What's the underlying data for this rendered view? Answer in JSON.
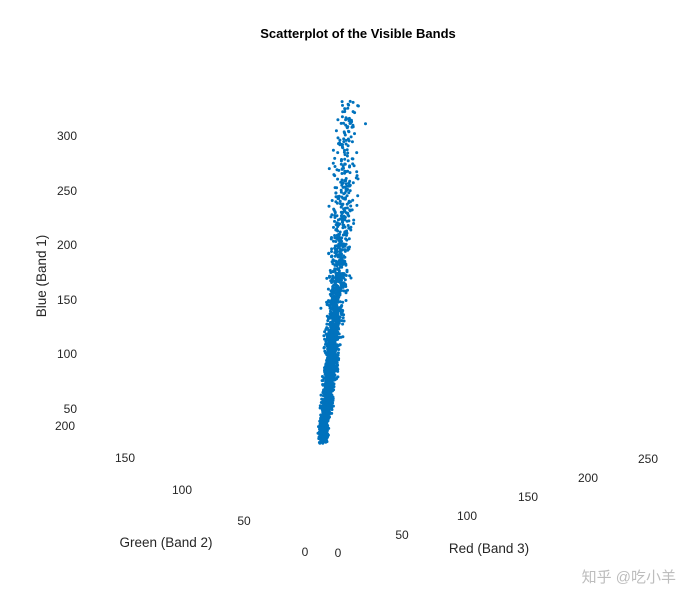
{
  "chart_data": {
    "type": "scatter",
    "title": "Scatterplot of the Visible Bands",
    "xlabel": "Red (Band 3)",
    "ylabel": "Green (Band 2)",
    "zlabel": "Blue (Band 1)",
    "x_ticks": [
      "0",
      "50",
      "100",
      "150",
      "200",
      "250"
    ],
    "y_ticks": [
      "0",
      "50",
      "100",
      "150",
      "200"
    ],
    "z_ticks": [
      "50",
      "100",
      "150",
      "200",
      "250",
      "300"
    ],
    "xlim": [
      0,
      250
    ],
    "ylim": [
      0,
      200
    ],
    "zlim": [
      30,
      320
    ],
    "marker_color": "#0072BD",
    "grid": false,
    "series": [
      {
        "values_summary": {
          "x_range": [
            5,
            120
          ],
          "y_range": [
            5,
            100
          ],
          "z_range": [
            35,
            318
          ]
        },
        "points": [
          [
            10,
            8,
            38
          ],
          [
            14,
            12,
            45
          ],
          [
            20,
            16,
            55
          ],
          [
            25,
            20,
            62
          ],
          [
            30,
            24,
            72
          ],
          [
            34,
            28,
            80
          ],
          [
            38,
            30,
            88
          ],
          [
            42,
            34,
            96
          ],
          [
            46,
            38,
            104
          ],
          [
            50,
            40,
            112
          ],
          [
            54,
            44,
            120
          ],
          [
            58,
            48,
            130
          ],
          [
            62,
            50,
            140
          ],
          [
            66,
            54,
            150
          ],
          [
            70,
            58,
            160
          ],
          [
            74,
            60,
            172
          ],
          [
            78,
            64,
            184
          ],
          [
            82,
            68,
            196
          ],
          [
            86,
            70,
            210
          ],
          [
            90,
            74,
            224
          ],
          [
            94,
            78,
            240
          ],
          [
            98,
            80,
            256
          ],
          [
            102,
            84,
            272
          ],
          [
            106,
            88,
            288
          ],
          [
            110,
            90,
            300
          ],
          [
            114,
            94,
            310
          ],
          [
            118,
            96,
            318
          ]
        ]
      }
    ]
  },
  "watermark": "知乎 @吃小羊"
}
